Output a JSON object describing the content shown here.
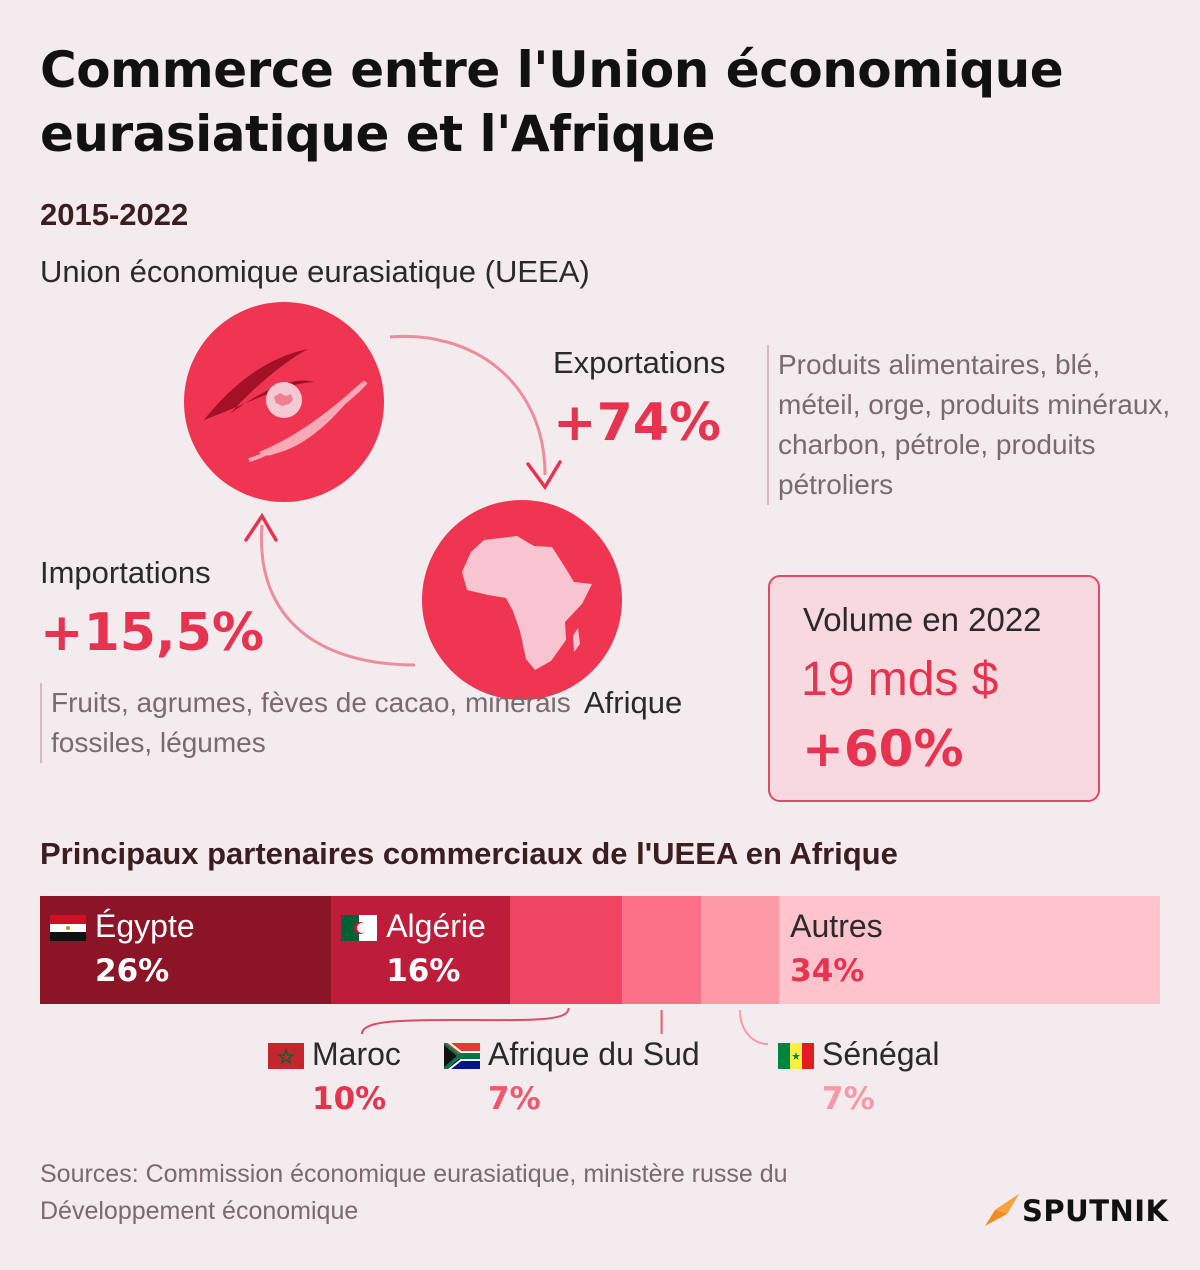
{
  "title": "Commerce entre l'Union économique eurasiatique et l'Afrique",
  "period": "2015-2022",
  "ueea_label": "Union économique eurasiatique (UEEA)",
  "africa_label": "Afrique",
  "exports": {
    "label": "Exportations",
    "change": "+74%",
    "description": "Produits alimentaires, blé, méteil, orge, produits minéraux, charbon, pétrole, produits pétroliers"
  },
  "imports": {
    "label": "Importations",
    "change": "+15,5%",
    "description": "Fruits, agrumes, fèves de cacao, minerais fossiles, légumes"
  },
  "volume": {
    "label": "Volume en 2022",
    "value": "19 mds $",
    "change": "+60%"
  },
  "partners_title": "Principaux partenaires commerciaux de l'UEEA en Afrique",
  "chart_data": {
    "type": "bar",
    "orientation": "horizontal-stacked",
    "title": "Principaux partenaires commerciaux de l'UEEA en Afrique",
    "categories": [
      "Égypte",
      "Algérie",
      "Maroc",
      "Afrique du Sud",
      "Sénégal",
      "Autres"
    ],
    "values": [
      26,
      16,
      10,
      7,
      7,
      34
    ],
    "labels": [
      "26%",
      "16%",
      "10%",
      "7%",
      "7%",
      "34%"
    ],
    "colors": [
      "#8c1427",
      "#be1d3a",
      "#ee4662",
      "#fb7188",
      "#fe99a8",
      "#fec3cc"
    ],
    "flags": [
      "egypt-flag-icon",
      "algeria-flag-icon",
      "morocco-flag-icon",
      "south-africa-flag-icon",
      "senegal-flag-icon",
      ""
    ]
  },
  "sources": "Sources: Commission économique eurasiatique, ministère russe du Développement économique",
  "logo": "SPUTNIK"
}
